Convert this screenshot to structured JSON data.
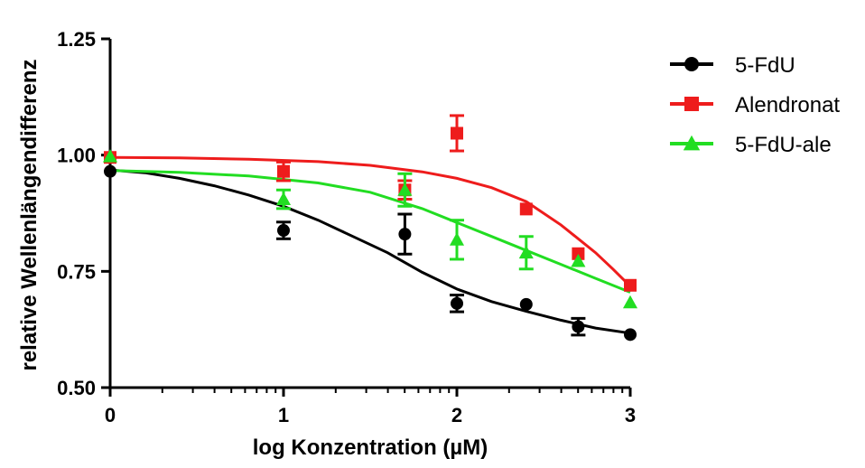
{
  "chart_data": {
    "type": "scatter",
    "xlabel": "log Konzentration (µM)",
    "ylabel": "relative Wellenlängendifferenz",
    "xlim": [
      0,
      3
    ],
    "ylim": [
      0.5,
      1.25
    ],
    "x_ticks": [
      0,
      1,
      2,
      3
    ],
    "x_tick_labels": [
      "0",
      "1",
      "2",
      "3"
    ],
    "y_ticks": [
      0.5,
      0.75,
      1.0,
      1.25
    ],
    "y_tick_labels": [
      "0.50",
      "0.75",
      "1.00",
      "1.25"
    ],
    "grid": false,
    "legend_position": "right",
    "series": [
      {
        "name": "5-FdU",
        "color": "#000000",
        "marker": "circle",
        "points": [
          {
            "x": 0,
            "y": 0.965,
            "err": 0.0
          },
          {
            "x": 1,
            "y": 0.838,
            "err": 0.018
          },
          {
            "x": 1.7,
            "y": 0.83,
            "err": 0.043
          },
          {
            "x": 2,
            "y": 0.681,
            "err": 0.018
          },
          {
            "x": 2.4,
            "y": 0.679,
            "err": 0.0
          },
          {
            "x": 2.7,
            "y": 0.631,
            "err": 0.018
          },
          {
            "x": 3,
            "y": 0.614,
            "err": 0.0
          }
        ],
        "curve": [
          [
            0,
            0.968
          ],
          [
            0.2,
            0.962
          ],
          [
            0.4,
            0.95
          ],
          [
            0.6,
            0.934
          ],
          [
            0.8,
            0.914
          ],
          [
            1.0,
            0.89
          ],
          [
            1.2,
            0.86
          ],
          [
            1.4,
            0.825
          ],
          [
            1.6,
            0.79
          ],
          [
            1.8,
            0.748
          ],
          [
            2.0,
            0.712
          ],
          [
            2.2,
            0.685
          ],
          [
            2.4,
            0.664
          ],
          [
            2.6,
            0.645
          ],
          [
            2.8,
            0.628
          ],
          [
            3.0,
            0.617
          ]
        ]
      },
      {
        "name": "Alendronat",
        "color": "#ee1c1c",
        "marker": "square",
        "points": [
          {
            "x": 0,
            "y": 0.995,
            "err": 0.0
          },
          {
            "x": 1,
            "y": 0.965,
            "err": 0.02
          },
          {
            "x": 1.7,
            "y": 0.925,
            "err": 0.02
          },
          {
            "x": 2,
            "y": 1.047,
            "err": 0.038
          },
          {
            "x": 2.4,
            "y": 0.884,
            "err": 0.0
          },
          {
            "x": 2.7,
            "y": 0.788,
            "err": 0.0
          },
          {
            "x": 3,
            "y": 0.72,
            "err": 0.0
          }
        ],
        "curve": [
          [
            0,
            0.995
          ],
          [
            0.4,
            0.994
          ],
          [
            0.8,
            0.991
          ],
          [
            1.2,
            0.986
          ],
          [
            1.5,
            0.978
          ],
          [
            1.8,
            0.964
          ],
          [
            2.0,
            0.95
          ],
          [
            2.2,
            0.93
          ],
          [
            2.4,
            0.9
          ],
          [
            2.6,
            0.85
          ],
          [
            2.8,
            0.79
          ],
          [
            2.9,
            0.755
          ],
          [
            3.0,
            0.718
          ]
        ]
      },
      {
        "name": "5-FdU-ale",
        "color": "#22dd22",
        "marker": "triangle",
        "points": [
          {
            "x": 0,
            "y": 0.997,
            "err": 0.0
          },
          {
            "x": 1,
            "y": 0.905,
            "err": 0.02
          },
          {
            "x": 1.7,
            "y": 0.925,
            "err": 0.035
          },
          {
            "x": 2,
            "y": 0.818,
            "err": 0.042
          },
          {
            "x": 2.4,
            "y": 0.79,
            "err": 0.035
          },
          {
            "x": 2.7,
            "y": 0.772,
            "err": 0.0
          },
          {
            "x": 3,
            "y": 0.683,
            "err": 0.0
          }
        ],
        "curve": [
          [
            0,
            0.967
          ],
          [
            0.4,
            0.963
          ],
          [
            0.8,
            0.955
          ],
          [
            1.2,
            0.94
          ],
          [
            1.5,
            0.92
          ],
          [
            1.8,
            0.885
          ],
          [
            2.0,
            0.855
          ],
          [
            2.2,
            0.825
          ],
          [
            2.4,
            0.795
          ],
          [
            2.6,
            0.765
          ],
          [
            2.8,
            0.735
          ],
          [
            3.0,
            0.705
          ]
        ]
      }
    ]
  }
}
